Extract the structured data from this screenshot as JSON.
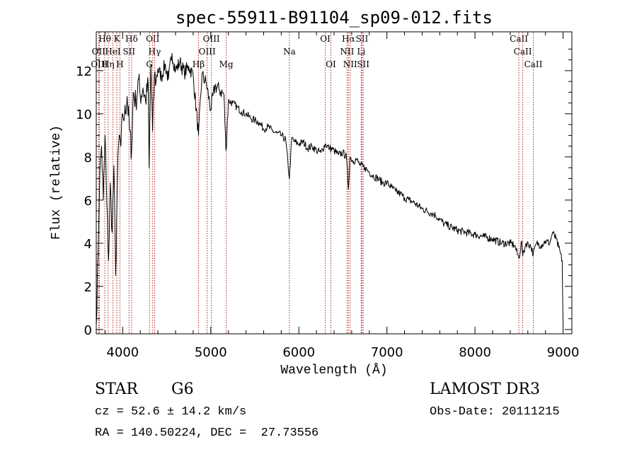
{
  "chart_data": {
    "type": "line",
    "title": "spec-55911-B91104_sp09-012.fits",
    "xlabel": "Wavelength (Å)",
    "ylabel": "Flux (relative)",
    "xlim": [
      3700,
      9100
    ],
    "ylim": [
      -0.2,
      13.8
    ],
    "xticks": [
      4000,
      5000,
      6000,
      7000,
      8000,
      9000
    ],
    "xtick_labels": [
      "4000",
      "5000",
      "6000",
      "7000",
      "8000",
      "9000"
    ],
    "yticks": [
      0,
      2,
      4,
      6,
      8,
      10,
      12
    ],
    "ytick_labels": [
      "0",
      "2",
      "4",
      "6",
      "8",
      "10",
      "12"
    ],
    "grid": false,
    "series": [
      {
        "name": "Flux",
        "x": [
          3700,
          3720,
          3740,
          3760,
          3780,
          3800,
          3820,
          3840,
          3860,
          3880,
          3900,
          3920,
          3940,
          3960,
          3980,
          4000,
          4020,
          4050,
          4080,
          4101,
          4120,
          4150,
          4180,
          4200,
          4230,
          4260,
          4290,
          4300,
          4320,
          4340,
          4360,
          4380,
          4400,
          4440,
          4480,
          4520,
          4560,
          4600,
          4650,
          4700,
          4750,
          4800,
          4861,
          4900,
          4950,
          5000,
          5050,
          5100,
          5150,
          5172,
          5200,
          5250,
          5300,
          5350,
          5400,
          5450,
          5500,
          5550,
          5600,
          5650,
          5700,
          5750,
          5800,
          5850,
          5893,
          5920,
          5950,
          6000,
          6050,
          6100,
          6150,
          6200,
          6250,
          6300,
          6350,
          6400,
          6450,
          6500,
          6540,
          6563,
          6580,
          6620,
          6650,
          6700,
          6750,
          6800,
          6850,
          6900,
          6950,
          7000,
          7050,
          7100,
          7150,
          7200,
          7250,
          7300,
          7400,
          7500,
          7550,
          7600,
          7650,
          7700,
          7800,
          7900,
          8000,
          8100,
          8200,
          8300,
          8400,
          8450,
          8498,
          8530,
          8542,
          8580,
          8630,
          8662,
          8700,
          8750,
          8800,
          8850,
          8880,
          8920,
          8950,
          8990,
          9000
        ],
        "values": [
          0.2,
          3.5,
          7.2,
          8.5,
          6.0,
          9.0,
          5.8,
          3.2,
          6.8,
          4.5,
          7.6,
          2.5,
          6.9,
          9.0,
          8.5,
          10.0,
          9.8,
          10.8,
          9.2,
          8.2,
          11.0,
          10.5,
          11.6,
          10.8,
          11.2,
          10.6,
          11.4,
          7.5,
          12.3,
          9.2,
          11.8,
          11.5,
          12.1,
          11.7,
          12.3,
          11.6,
          12.8,
          12.0,
          12.4,
          11.9,
          12.2,
          11.8,
          9.0,
          11.8,
          11.4,
          10.2,
          11.3,
          11.1,
          10.9,
          8.3,
          10.6,
          10.5,
          10.3,
          10.1,
          10.0,
          9.8,
          9.7,
          9.6,
          9.3,
          9.4,
          9.2,
          9.1,
          9.0,
          8.8,
          7.0,
          8.9,
          8.7,
          8.6,
          8.7,
          8.4,
          8.5,
          8.3,
          8.2,
          8.6,
          8.4,
          8.3,
          8.1,
          8.2,
          8.0,
          6.5,
          8.0,
          7.8,
          7.9,
          7.6,
          7.5,
          7.3,
          7.1,
          7.0,
          6.8,
          6.8,
          6.6,
          6.4,
          6.3,
          6.1,
          6.0,
          5.9,
          5.6,
          5.4,
          5.3,
          5.1,
          4.9,
          4.8,
          4.6,
          4.5,
          4.4,
          4.3,
          4.2,
          4.0,
          4.0,
          3.9,
          3.3,
          4.1,
          3.4,
          4.0,
          3.9,
          3.5,
          4.0,
          3.9,
          4.1,
          4.0,
          4.5,
          4.2,
          3.8,
          3.2,
          0.1
        ]
      }
    ],
    "line_markers": [
      {
        "label": "Hθ",
        "x": 3797,
        "row": 0
      },
      {
        "label": "K",
        "x": 3934,
        "row": 0
      },
      {
        "label": "Hδ",
        "x": 4101,
        "row": 0
      },
      {
        "label": "OII",
        "x": 4341,
        "row": 0
      },
      {
        "label": "OIII",
        "x": 5007,
        "row": 0
      },
      {
        "label": "OI",
        "x": 6300,
        "row": 0
      },
      {
        "label": "Hα",
        "x": 6563,
        "row": 0
      },
      {
        "label": "SII",
        "x": 6717,
        "row": 0
      },
      {
        "label": "CaII",
        "x": 8498,
        "row": 0
      },
      {
        "label": "OII",
        "x": 3727,
        "row": 1
      },
      {
        "label": "HeI",
        "x": 3889,
        "row": 1
      },
      {
        "label": "SII",
        "x": 4072,
        "row": 1
      },
      {
        "label": "Hγ",
        "x": 4363,
        "row": 1
      },
      {
        "label": "OIII",
        "x": 4959,
        "row": 1
      },
      {
        "label": "Na",
        "x": 5893,
        "row": 1
      },
      {
        "label": "NII",
        "x": 6548,
        "row": 1
      },
      {
        "label": "Li",
        "x": 6708,
        "row": 1
      },
      {
        "label": "CaII",
        "x": 8542,
        "row": 1
      },
      {
        "label": "OIII",
        "x": 3735,
        "row": 2
      },
      {
        "label": "Hη",
        "x": 3835,
        "row": 2
      },
      {
        "label": "H",
        "x": 3969,
        "row": 2
      },
      {
        "label": "G",
        "x": 4304,
        "row": 2
      },
      {
        "label": "Hβ",
        "x": 4861,
        "row": 2
      },
      {
        "label": "Mg",
        "x": 5175,
        "row": 2
      },
      {
        "label": "OI",
        "x": 6364,
        "row": 2
      },
      {
        "label": "NII",
        "x": 6583,
        "row": 2
      },
      {
        "label": "SII",
        "x": 6731,
        "row": 2
      },
      {
        "label": "CaII",
        "x": 8662,
        "row": 2
      }
    ],
    "marker_color": "#b22222"
  },
  "footer": {
    "object_class": "STAR",
    "subclass": "G6",
    "survey": "LAMOST DR3",
    "cz": "cz = 52.6 ± 14.2 km/s",
    "obs_date": "Obs-Date: 20111215",
    "coords": "RA = 140.50224, DEC =  27.73556"
  }
}
